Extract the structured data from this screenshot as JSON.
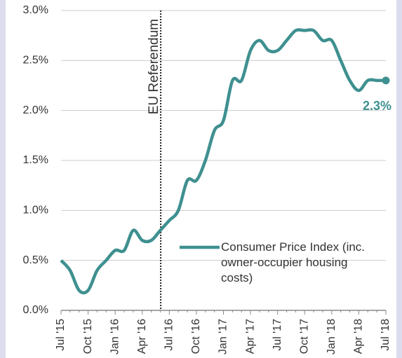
{
  "chart_data": {
    "type": "line",
    "categories": [
      "Jul '15",
      null,
      null,
      "Oct '15",
      null,
      null,
      "Jan '16",
      null,
      null,
      "Apr '16",
      null,
      null,
      "Jul '16",
      null,
      null,
      "Oct '16",
      null,
      null,
      "Jan '17",
      null,
      null,
      "Apr '17",
      null,
      null,
      "Jul '17",
      null,
      null,
      "Oct '17",
      null,
      null,
      "Jan '18",
      null,
      null,
      "Apr '18",
      null,
      null,
      "Jul '18"
    ],
    "series": [
      {
        "name": "Consumer Price Index (inc. owner-occupier housing costs)",
        "color": "#3f9090",
        "values": [
          0.5,
          0.4,
          0.2,
          0.2,
          0.4,
          0.5,
          0.6,
          0.6,
          0.8,
          0.7,
          0.7,
          0.8,
          0.9,
          1.0,
          1.3,
          1.3,
          1.5,
          1.8,
          1.9,
          2.3,
          2.3,
          2.6,
          2.7,
          2.6,
          2.6,
          2.7,
          2.8,
          2.8,
          2.8,
          2.7,
          2.7,
          2.5,
          2.3,
          2.2,
          2.3,
          2.3,
          2.3
        ]
      }
    ],
    "end_label": "2.3%",
    "annotation": "EU Referendum",
    "ylim": [
      0,
      3
    ],
    "yticks": [
      {
        "value": 0,
        "label": "0.0%"
      },
      {
        "value": 0.5,
        "label": "0.5%"
      },
      {
        "value": 1,
        "label": "1.0%"
      },
      {
        "value": 1.5,
        "label": "1.5%"
      },
      {
        "value": 2,
        "label": "2.0%"
      },
      {
        "value": 2.5,
        "label": "2.5%"
      },
      {
        "value": 3,
        "label": "3.0%"
      }
    ],
    "grid": true
  }
}
